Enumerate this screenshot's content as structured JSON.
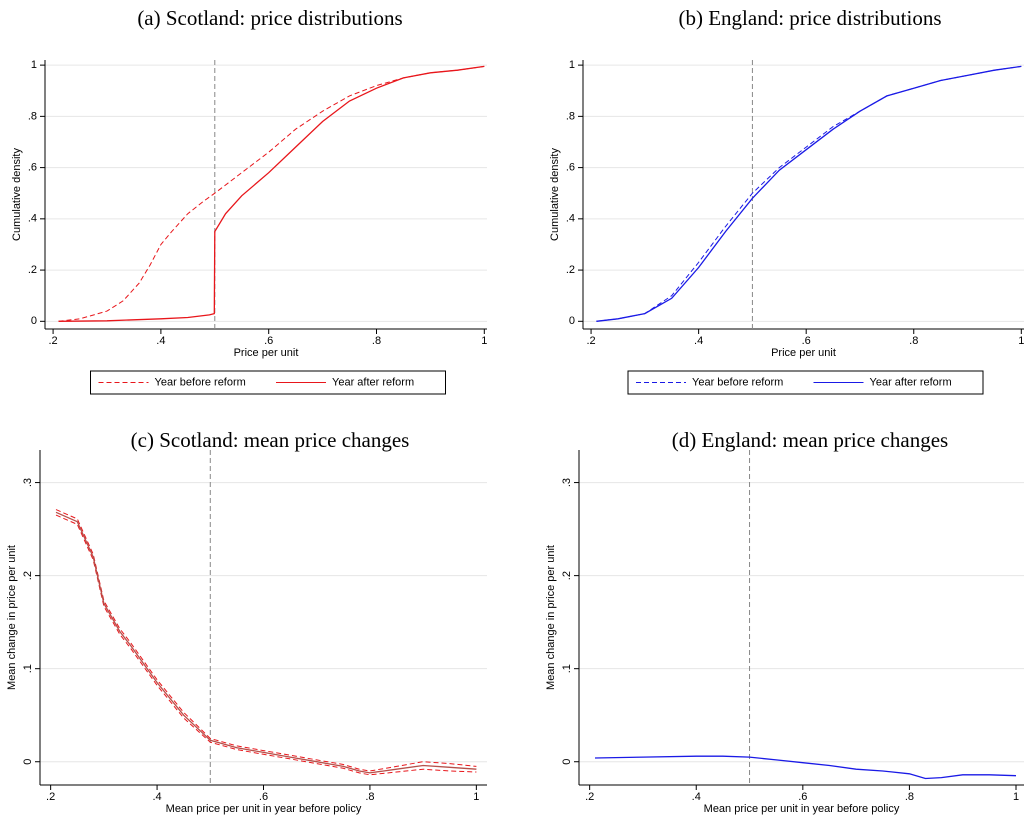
{
  "chart_data": [
    {
      "type": "line",
      "title": "(a) Scotland: price distributions",
      "x_label": "Price per unit",
      "y_label": "Cumulative density",
      "xlim": [
        0.185,
        1.005
      ],
      "ylim": [
        -0.03,
        1.02
      ],
      "xticks": [
        {
          "value": 0.2,
          "label": ".2"
        },
        {
          "value": 0.4,
          "label": ".4"
        },
        {
          "value": 0.6,
          "label": ".6"
        },
        {
          "value": 0.8,
          "label": ".8"
        },
        1
      ],
      "yticks": [
        0,
        {
          "value": 0.2,
          "label": ".2"
        },
        {
          "value": 0.4,
          "label": ".4"
        },
        {
          "value": 0.6,
          "label": ".6"
        },
        {
          "value": 0.8,
          "label": ".8"
        },
        1
      ],
      "grid": true,
      "vline": 0.5,
      "legend": "bottom",
      "series": [
        {
          "name": "Year before reform",
          "color": "#e8161b",
          "style": "dashed",
          "x": [
            0.21,
            0.25,
            0.3,
            0.33,
            0.36,
            0.38,
            0.4,
            0.42,
            0.45,
            0.48,
            0.5,
            0.55,
            0.6,
            0.65,
            0.7,
            0.75,
            0.8,
            0.85,
            0.9,
            0.95,
            1.0
          ],
          "values": [
            0.0,
            0.01,
            0.04,
            0.08,
            0.15,
            0.22,
            0.3,
            0.35,
            0.42,
            0.47,
            0.5,
            0.58,
            0.66,
            0.75,
            0.82,
            0.88,
            0.92,
            0.95,
            0.97,
            0.98,
            0.995
          ]
        },
        {
          "name": "Year after reform",
          "color": "#e8161b",
          "style": "solid",
          "x": [
            0.21,
            0.3,
            0.4,
            0.45,
            0.49,
            0.499,
            0.5,
            0.52,
            0.55,
            0.6,
            0.65,
            0.7,
            0.75,
            0.8,
            0.85,
            0.9,
            0.95,
            1.0
          ],
          "values": [
            0.0,
            0.002,
            0.01,
            0.015,
            0.025,
            0.03,
            0.35,
            0.42,
            0.49,
            0.58,
            0.68,
            0.78,
            0.86,
            0.91,
            0.95,
            0.97,
            0.98,
            0.995
          ]
        }
      ]
    },
    {
      "type": "line",
      "title": "(b) England: price distributions",
      "x_label": "Price per unit",
      "y_label": "Cumulative density",
      "xlim": [
        0.185,
        1.005
      ],
      "ylim": [
        -0.03,
        1.02
      ],
      "xticks": [
        {
          "value": 0.2,
          "label": ".2"
        },
        {
          "value": 0.4,
          "label": ".4"
        },
        {
          "value": 0.6,
          "label": ".6"
        },
        {
          "value": 0.8,
          "label": ".8"
        },
        1
      ],
      "yticks": [
        0,
        {
          "value": 0.2,
          "label": ".2"
        },
        {
          "value": 0.4,
          "label": ".4"
        },
        {
          "value": 0.6,
          "label": ".6"
        },
        {
          "value": 0.8,
          "label": ".8"
        },
        1
      ],
      "grid": true,
      "vline": 0.5,
      "legend": "bottom",
      "series": [
        {
          "name": "Year before reform",
          "color": "#1a1ae6",
          "style": "dashed",
          "x": [
            0.21,
            0.25,
            0.3,
            0.35,
            0.4,
            0.45,
            0.5,
            0.55,
            0.6,
            0.65,
            0.7,
            0.75,
            0.8,
            0.85,
            0.9,
            0.95,
            1.0
          ],
          "values": [
            0.0,
            0.01,
            0.03,
            0.1,
            0.23,
            0.37,
            0.5,
            0.6,
            0.68,
            0.76,
            0.82,
            0.88,
            0.91,
            0.94,
            0.96,
            0.98,
            0.995
          ]
        },
        {
          "name": "Year after reform",
          "color": "#1a1ae6",
          "style": "solid",
          "x": [
            0.21,
            0.25,
            0.3,
            0.35,
            0.4,
            0.45,
            0.5,
            0.55,
            0.6,
            0.65,
            0.7,
            0.75,
            0.8,
            0.85,
            0.9,
            0.95,
            1.0
          ],
          "values": [
            0.0,
            0.01,
            0.03,
            0.09,
            0.21,
            0.35,
            0.48,
            0.59,
            0.67,
            0.75,
            0.82,
            0.88,
            0.91,
            0.94,
            0.96,
            0.98,
            0.995
          ]
        }
      ]
    },
    {
      "type": "line",
      "title": "(c) Scotland: mean price changes",
      "x_label": "Mean price per unit in year before policy",
      "y_label": "Mean change in price per unit",
      "xlim": [
        0.18,
        1.02
      ],
      "ylim": [
        -0.025,
        0.335
      ],
      "xticks": [
        {
          "value": 0.2,
          "label": ".2"
        },
        {
          "value": 0.4,
          "label": ".4"
        },
        {
          "value": 0.6,
          "label": ".6"
        },
        {
          "value": 0.8,
          "label": ".8"
        },
        1
      ],
      "yticks": [
        0,
        {
          "value": 0.1,
          "label": ".1"
        },
        {
          "value": 0.2,
          "label": ".2"
        },
        {
          "value": 0.3,
          "label": ".3"
        }
      ],
      "grid": true,
      "vline": 0.5,
      "series": [
        {
          "color": "#e8161b",
          "style": "dashed",
          "x": [
            0.21,
            0.25,
            0.28,
            0.3,
            0.33,
            0.35,
            0.4,
            0.45,
            0.5,
            0.55,
            0.6,
            0.65,
            0.7,
            0.75,
            0.78,
            0.8,
            0.85,
            0.9,
            0.95,
            1.0
          ],
          "values": [
            0.271,
            0.261,
            0.223,
            0.173,
            0.143,
            0.128,
            0.088,
            0.053,
            0.025,
            0.017,
            0.012,
            0.007,
            0.002,
            -0.003,
            -0.008,
            -0.01,
            -0.005,
            -0.0,
            -0.002,
            -0.005
          ]
        },
        {
          "color": "#e8161b",
          "style": "dashed",
          "x": [
            0.21,
            0.25,
            0.28,
            0.3,
            0.33,
            0.35,
            0.4,
            0.45,
            0.5,
            0.55,
            0.6,
            0.65,
            0.7,
            0.75,
            0.78,
            0.8,
            0.85,
            0.9,
            0.95,
            1.0
          ],
          "values": [
            0.265,
            0.255,
            0.217,
            0.167,
            0.137,
            0.122,
            0.082,
            0.047,
            0.021,
            0.013,
            0.008,
            0.003,
            -0.002,
            -0.007,
            -0.012,
            -0.014,
            -0.011,
            -0.008,
            -0.01,
            -0.011
          ]
        },
        {
          "color": "#b5504a",
          "style": "solid",
          "x": [
            0.21,
            0.25,
            0.28,
            0.3,
            0.33,
            0.35,
            0.4,
            0.45,
            0.5,
            0.55,
            0.6,
            0.65,
            0.7,
            0.75,
            0.78,
            0.8,
            0.85,
            0.9,
            0.95,
            1.0
          ],
          "values": [
            0.268,
            0.258,
            0.22,
            0.17,
            0.14,
            0.125,
            0.085,
            0.05,
            0.023,
            0.015,
            0.01,
            0.005,
            0.0,
            -0.005,
            -0.01,
            -0.012,
            -0.008,
            -0.004,
            -0.006,
            -0.008
          ]
        }
      ]
    },
    {
      "type": "line",
      "title": "(d) England: mean price changes",
      "x_label": "Mean price per unit in year before policy",
      "y_label": "Mean change in price per unit",
      "xlim": [
        0.18,
        1.015
      ],
      "ylim": [
        -0.025,
        0.335
      ],
      "xticks": [
        {
          "value": 0.2,
          "label": ".2"
        },
        {
          "value": 0.4,
          "label": ".4"
        },
        {
          "value": 0.6,
          "label": ".6"
        },
        {
          "value": 0.8,
          "label": ".8"
        },
        1
      ],
      "yticks": [
        0,
        {
          "value": 0.1,
          "label": ".1"
        },
        {
          "value": 0.2,
          "label": ".2"
        },
        {
          "value": 0.3,
          "label": ".3"
        }
      ],
      "grid": true,
      "vline": 0.5,
      "series": [
        {
          "color": "#1a1ae6",
          "style": "solid",
          "x": [
            0.21,
            0.3,
            0.4,
            0.45,
            0.5,
            0.55,
            0.6,
            0.65,
            0.7,
            0.75,
            0.8,
            0.83,
            0.86,
            0.9,
            0.95,
            1.0
          ],
          "values": [
            0.004,
            0.005,
            0.006,
            0.006,
            0.005,
            0.002,
            -0.001,
            -0.004,
            -0.008,
            -0.01,
            -0.013,
            -0.018,
            -0.017,
            -0.014,
            -0.014,
            -0.015
          ]
        }
      ]
    }
  ]
}
